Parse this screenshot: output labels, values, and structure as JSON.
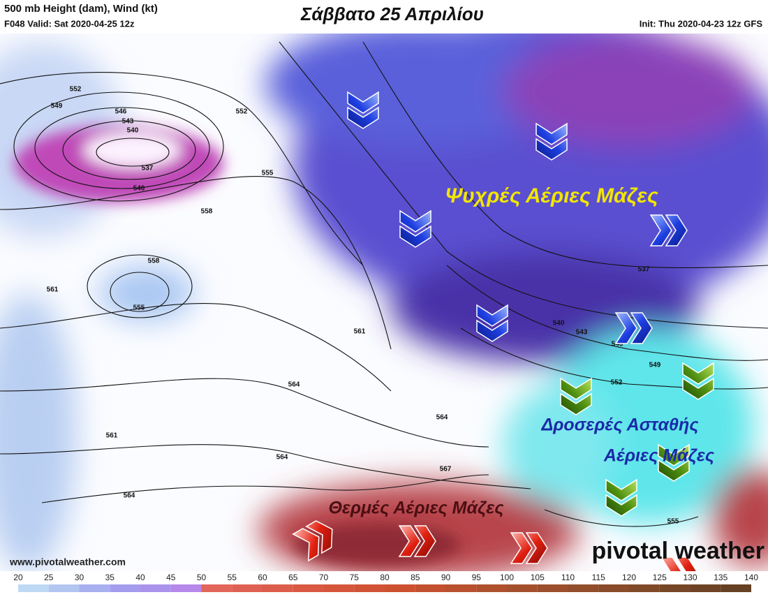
{
  "header": {
    "title": "500 mb Height (dam), Wind (kt)",
    "valid": "F048 Valid: Sat 2020-04-25 12z",
    "init": "Init: Thu 2020-04-23 12z GFS",
    "day_title": "Σάββατο 25 Απριλίου"
  },
  "annotations": {
    "cold": "Ψυχρές Αέριες  Μάζες",
    "cool_line1": "Δροσερές Ασταθής",
    "cool_line2": "Αέριες Μάζες",
    "warm": "Θερμές Αέριες Μάζες"
  },
  "watermark": {
    "url": "www.pivotalweather.com",
    "logo": "pivotal weather"
  },
  "contour_labels": [
    552,
    549,
    546,
    543,
    540,
    537,
    546,
    552,
    555,
    558,
    558,
    561,
    555,
    561,
    564,
    561,
    564,
    564,
    564,
    567,
    537,
    540,
    543,
    546,
    549,
    552,
    555
  ],
  "colorbar": {
    "ticks": [
      20,
      25,
      30,
      35,
      40,
      45,
      50,
      55,
      60,
      65,
      70,
      75,
      80,
      85,
      90,
      95,
      100,
      105,
      110,
      115,
      120,
      125,
      130,
      135,
      140
    ]
  }
}
